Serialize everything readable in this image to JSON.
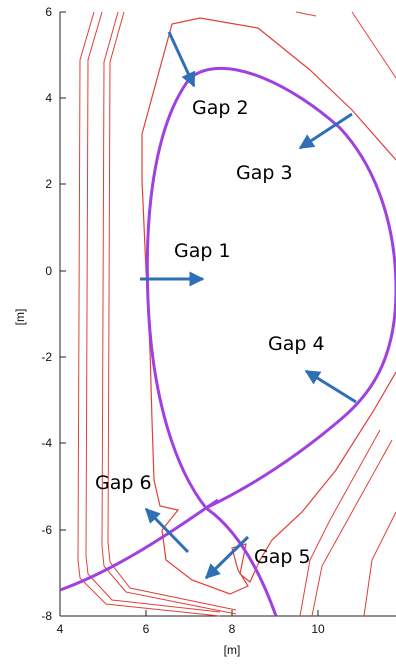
{
  "axes": {
    "xlabel": "[m]",
    "ylabel": "[m]",
    "xlim": [
      4,
      12
    ],
    "ylim": [
      -8,
      6
    ],
    "xticks": [
      4,
      6,
      8,
      10
    ],
    "yticks": [
      6,
      4,
      2,
      0,
      -2,
      -4,
      -6,
      -8
    ],
    "xtick_labels": [
      "4",
      "6",
      "8",
      "10"
    ],
    "ytick_labels": [
      "6",
      "4",
      "2",
      "0",
      "-2",
      "-4",
      "-6",
      "-8"
    ]
  },
  "gaps": {
    "gap1": "Gap 1",
    "gap2": "Gap 2",
    "gap3": "Gap 3",
    "gap4": "Gap 4",
    "gap5": "Gap 5",
    "gap6": "Gap 6"
  },
  "colors": {
    "vessel": "#e0403a",
    "plasma": "#a040e0",
    "arrow": "#2f6fb5"
  }
}
